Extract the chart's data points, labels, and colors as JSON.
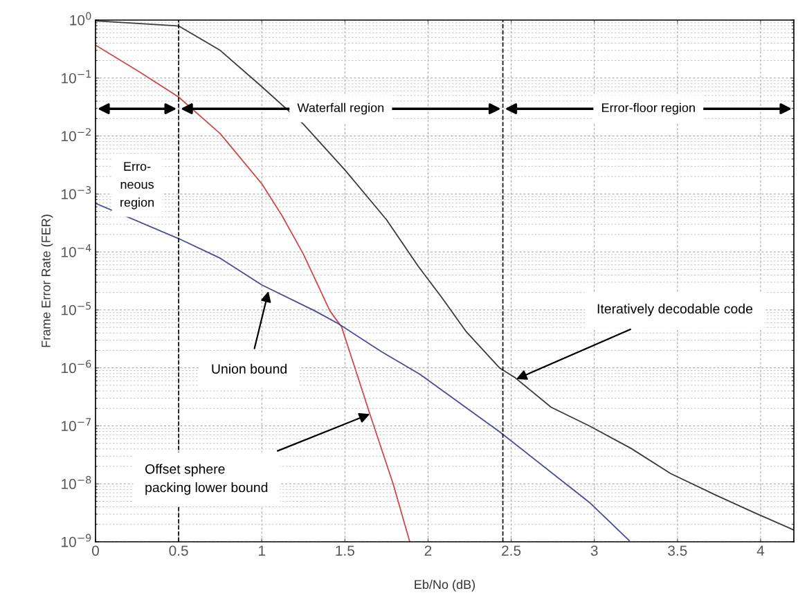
{
  "chart_data": {
    "type": "line",
    "xlabel": "Eb/No (dB)",
    "ylabel": "Frame Error Rate (FER)",
    "log": "y",
    "grid": true,
    "marker": "none",
    "line_style": "solid",
    "xlim": [
      0,
      4.2
    ],
    "xticks": [
      0,
      0.5,
      1,
      1.5,
      2,
      2.5,
      3,
      3.5,
      4
    ],
    "ylim": [
      1e-09,
      1
    ],
    "yticks": [
      {
        "value": 1e-09,
        "label": "10$^{−9}$"
      },
      {
        "value": 1e-08,
        "label": "10$^{−8}$"
      },
      {
        "value": 1e-07,
        "label": "10$^{−7}$"
      },
      {
        "value": 1e-06,
        "label": "10$^{−6}$"
      },
      {
        "value": 1e-05,
        "label": "10$^{−5}$"
      },
      {
        "value": 0.0001,
        "label": "10$^{−4}$"
      },
      {
        "value": 0.001,
        "label": "10$^{−3}$"
      },
      {
        "value": 0.01,
        "label": "10$^{−2}$"
      },
      {
        "value": 0.1,
        "label": "10$^{−1}$"
      },
      {
        "value": 1,
        "label": "10$^{0}$"
      }
    ],
    "series": [
      {
        "color": "#3a3a3a",
        "x": [
          0,
          0.5,
          0.75,
          1.0,
          1.25,
          1.5,
          1.75,
          1.94,
          2.085,
          2.23,
          2.43,
          2.52,
          2.74,
          2.97,
          3.22,
          3.46,
          3.72,
          3.96,
          4.2
        ],
        "values": [
          0.97,
          0.79,
          0.3,
          0.071,
          0.016,
          0.0026,
          0.00036,
          5.7e-05,
          1.6e-05,
          4.2e-06,
          1e-06,
          6.9e-07,
          2.1e-07,
          1e-07,
          4.1e-08,
          1.5e-08,
          6.6e-09,
          3.2e-09,
          1.6e-09
        ]
      },
      {
        "color": "#cc4a4a",
        "x": [
          0,
          0.26,
          0.5,
          0.75,
          1.0,
          1.12,
          1.25,
          1.41,
          1.48,
          1.65,
          1.79,
          1.89
        ],
        "values": [
          0.37,
          0.13,
          0.047,
          0.011,
          0.0015,
          0.00043,
          9.2e-05,
          9.6e-06,
          5.1e-06,
          1.6e-07,
          1e-08,
          1e-09
        ]
      },
      {
        "color": "#4a4a9a",
        "x": [
          0,
          0.5,
          0.75,
          1.0,
          1.32,
          1.46,
          1.72,
          1.95,
          2.43,
          2.97,
          3.21
        ],
        "values": [
          0.00069,
          0.00017,
          7.8e-05,
          2.7e-05,
          9.6e-06,
          5.8e-06,
          1.9e-06,
          7.8e-07,
          7.9e-08,
          4.8e-09,
          1.05e-09
        ]
      }
    ],
    "ref_lines": [
      {
        "axis": "x",
        "value": 0.5,
        "line_style": "dashed",
        "color": "#000000"
      },
      {
        "axis": "x",
        "value": 2.45,
        "line_style": "dashed",
        "color": "#000000"
      }
    ],
    "annotations": [
      "Erro-\nneous\nregion",
      "Waterfall region",
      "Error-floor region",
      {
        "text": "Union bound",
        "x": 1.04,
        "y": 2.1e-05
      },
      {
        "text": "Offset sphere\npacking lower bound",
        "x": 1.65,
        "y": 1.6e-07
      },
      {
        "text": "Iteratively decodable code",
        "x": 2.53,
        "y": 6.4e-07
      }
    ]
  }
}
